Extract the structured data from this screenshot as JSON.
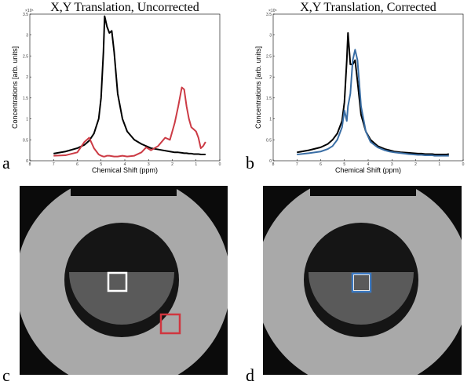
{
  "panel_labels": [
    "a",
    "b",
    "c",
    "d"
  ],
  "chart_data": [
    {
      "type": "line",
      "title": "X,Y Translation, Uncorrected",
      "x_label": "Chemical Shift (ppm)",
      "y_label": "Concentrations [arb. units]",
      "y_scale_label": "×10⁵",
      "x": [
        7,
        6.5,
        6,
        5.7,
        5.5,
        5.3,
        5.1,
        5,
        4.9,
        4.85,
        4.75,
        4.65,
        4.55,
        4.45,
        4.3,
        4.1,
        3.9,
        3.6,
        3.3,
        3.1,
        2.9,
        2.6,
        2.3,
        2.1,
        1.9,
        1.75,
        1.6,
        1.5,
        1.4,
        1.3,
        1.2,
        1.1,
        1.0,
        0.9,
        0.8,
        0.7,
        0.6
      ],
      "series": [
        {
          "color": "#000000",
          "values": [
            0.17,
            0.22,
            0.3,
            0.38,
            0.48,
            0.65,
            1.0,
            1.5,
            2.6,
            3.45,
            3.2,
            3.05,
            3.1,
            2.6,
            1.6,
            1.0,
            0.7,
            0.5,
            0.4,
            0.35,
            0.3,
            0.27,
            0.24,
            0.22,
            0.2,
            0.2,
            0.19,
            0.18,
            0.18,
            0.17,
            0.17,
            0.16,
            0.16,
            0.16,
            0.15,
            0.15,
            0.15
          ]
        },
        {
          "color": "#cc3b45",
          "values": [
            0.12,
            0.13,
            0.2,
            0.45,
            0.55,
            0.3,
            0.15,
            0.12,
            0.1,
            0.1,
            0.12,
            0.12,
            0.11,
            0.1,
            0.1,
            0.12,
            0.1,
            0.12,
            0.2,
            0.32,
            0.25,
            0.35,
            0.55,
            0.5,
            0.9,
            1.3,
            1.75,
            1.7,
            1.3,
            1.0,
            0.8,
            0.75,
            0.7,
            0.55,
            0.3,
            0.35,
            0.45
          ]
        }
      ],
      "xlim": [
        8,
        0
      ],
      "xticks": [
        8,
        7,
        6,
        5,
        4,
        3,
        2,
        1,
        0
      ],
      "ylim": [
        0,
        3.5
      ],
      "yticks": [
        0,
        0.5,
        1,
        1.5,
        2,
        2.5,
        3,
        3.5
      ]
    },
    {
      "type": "line",
      "title": "X,Y Translation, Corrected",
      "x_label": "Chemical Shift (ppm)",
      "y_label": "Concentrations [arb. units]",
      "y_scale_label": "×10⁵",
      "x": [
        7,
        6.5,
        6,
        5.7,
        5.5,
        5.3,
        5.1,
        5,
        4.9,
        4.85,
        4.75,
        4.65,
        4.55,
        4.45,
        4.3,
        4.1,
        3.9,
        3.6,
        3.3,
        3.1,
        2.9,
        2.6,
        2.3,
        2.1,
        1.9,
        1.75,
        1.6,
        1.5,
        1.4,
        1.3,
        1.2,
        1.1,
        1.0,
        0.9,
        0.8,
        0.7,
        0.6
      ],
      "series": [
        {
          "color": "#000000",
          "values": [
            0.2,
            0.25,
            0.32,
            0.4,
            0.5,
            0.65,
            0.95,
            1.4,
            2.4,
            3.05,
            2.3,
            2.3,
            2.4,
            1.9,
            1.1,
            0.7,
            0.5,
            0.35,
            0.28,
            0.25,
            0.22,
            0.2,
            0.19,
            0.18,
            0.17,
            0.17,
            0.16,
            0.16,
            0.16,
            0.16,
            0.15,
            0.15,
            0.15,
            0.15,
            0.15,
            0.15,
            0.16
          ]
        },
        {
          "color": "#3a6ea5",
          "values": [
            0.15,
            0.18,
            0.22,
            0.28,
            0.35,
            0.5,
            0.8,
            1.2,
            0.95,
            1.3,
            1.6,
            2.4,
            2.65,
            2.4,
            1.3,
            0.7,
            0.45,
            0.32,
            0.25,
            0.22,
            0.2,
            0.18,
            0.16,
            0.15,
            0.14,
            0.14,
            0.13,
            0.13,
            0.13,
            0.13,
            0.12,
            0.12,
            0.12,
            0.12,
            0.12,
            0.12,
            0.12
          ]
        }
      ],
      "xlim": [
        8,
        0
      ],
      "xticks": [
        8,
        7,
        6,
        5,
        4,
        3,
        2,
        1,
        0
      ],
      "ylim": [
        0,
        3.5
      ],
      "yticks": [
        0,
        0.5,
        1,
        1.5,
        2,
        2.5,
        3,
        3.5
      ]
    }
  ]
}
